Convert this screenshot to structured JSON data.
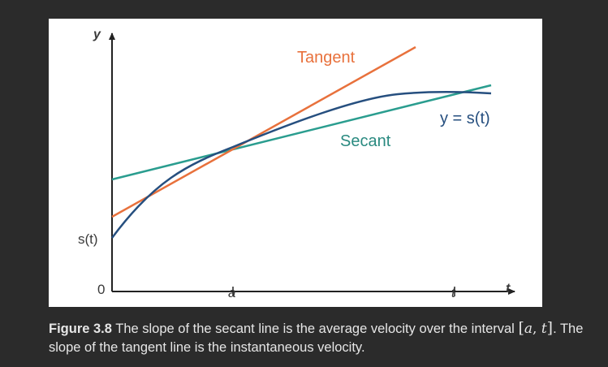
{
  "figure": {
    "y_axis_label": "y",
    "t_axis_label": "t",
    "origin_label": "0",
    "s_t_label": "s(t)",
    "a_tick_label": "a",
    "t_tick_label": "t",
    "tangent_label": "Tangent",
    "secant_label": "Secant",
    "curve_label": "y = s(t)",
    "colors": {
      "axis": "#222222",
      "tangent": "#e8713c",
      "secant": "#2a9d8f",
      "curve": "#264f7f",
      "tangent_text": "#e8713c",
      "secant_text": "#2a8a80",
      "curve_text": "#264f7f",
      "label_text": "#3a3a3a"
    }
  },
  "caption": {
    "figure_number": "Figure 3.8",
    "text_before_interval": " The slope of the secant line is the average velocity over the interval ",
    "interval_open": "[",
    "interval_a": "a",
    "interval_comma": ", ",
    "interval_t": "t",
    "interval_close": "]",
    "text_after_interval": ". The slope of the tangent line is the instantaneous velocity."
  }
}
